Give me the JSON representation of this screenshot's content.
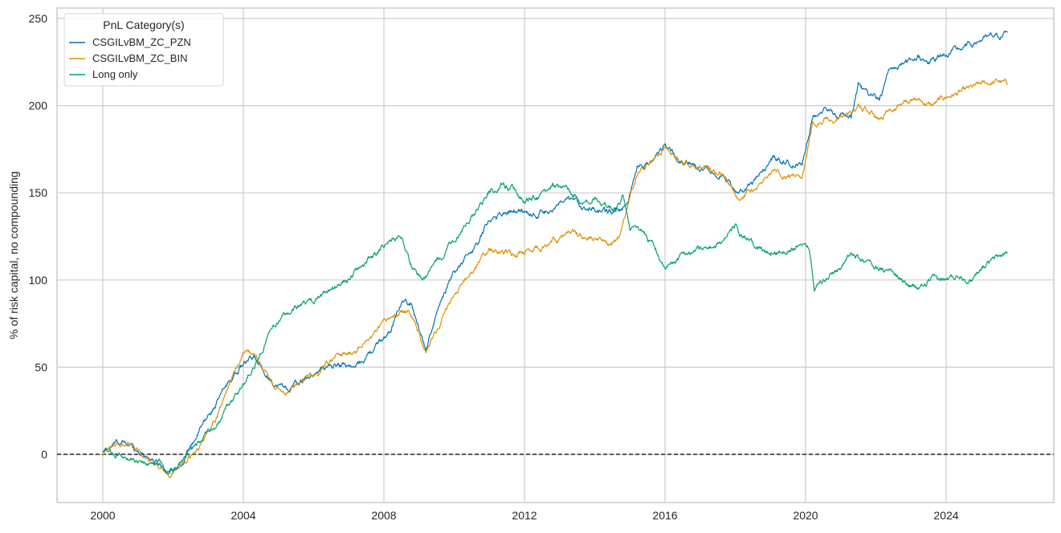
{
  "chart_data": {
    "type": "line",
    "title": "",
    "xlabel": "",
    "ylabel": "% of risk capital, no compounding",
    "xlim": [
      1998.7,
      2026.9
    ],
    "ylim": [
      -28,
      256
    ],
    "x_ticks": [
      "2000",
      "2004",
      "2008",
      "2012",
      "2016",
      "2020",
      "2024"
    ],
    "y_ticks": [
      "0",
      "50",
      "100",
      "150",
      "200",
      "250"
    ],
    "grid": true,
    "zero_line": {
      "y": 0,
      "style": "dashed",
      "color": "#000000"
    },
    "legend": {
      "title": "PnL Category(s)",
      "position": "upper left",
      "entries": [
        "CSGILvBM_ZC_PZN",
        "CSGILvBM_ZC_BIN",
        "Long only"
      ]
    },
    "series": [
      {
        "name": "CSGILvBM_ZC_PZN",
        "color": "#0173b2",
        "x": [
          2000.0,
          2000.4,
          2000.8,
          2001.2,
          2001.5,
          2001.9,
          2002.3,
          2002.7,
          2003.2,
          2003.6,
          2004.0,
          2004.3,
          2004.6,
          2004.9,
          2005.3,
          2005.7,
          2006.2,
          2006.7,
          2007.2,
          2007.7,
          2008.2,
          2008.5,
          2008.8,
          2009.2,
          2009.5,
          2009.9,
          2010.3,
          2010.7,
          2011.0,
          2011.4,
          2011.8,
          2012.3,
          2012.8,
          2013.3,
          2013.6,
          2014.0,
          2014.5,
          2014.9,
          2015.2,
          2015.6,
          2016.0,
          2016.4,
          2016.8,
          2017.2,
          2017.7,
          2018.1,
          2018.3,
          2018.7,
          2019.1,
          2019.5,
          2019.9,
          2020.2,
          2020.5,
          2020.9,
          2021.3,
          2021.5,
          2021.8,
          2022.1,
          2022.4,
          2022.8,
          2023.2,
          2023.6,
          2024.0,
          2024.5,
          2025.0,
          2025.5,
          2025.75
        ],
        "values": [
          1,
          7,
          5,
          0,
          -4,
          -10,
          -3,
          12,
          28,
          42,
          52,
          55,
          48,
          40,
          38,
          42,
          48,
          52,
          50,
          60,
          72,
          88,
          85,
          60,
          80,
          100,
          112,
          122,
          135,
          138,
          140,
          138,
          141,
          145,
          143,
          140,
          138,
          143,
          165,
          168,
          178,
          168,
          165,
          165,
          160,
          148,
          152,
          160,
          170,
          168,
          165,
          195,
          198,
          195,
          193,
          213,
          205,
          203,
          220,
          225,
          228,
          226,
          230,
          233,
          238,
          240,
          242
        ]
      },
      {
        "name": "CSGILvBM_ZC_BIN",
        "color": "#de8f05",
        "x": [
          2000.0,
          2000.4,
          2000.8,
          2001.2,
          2001.5,
          2001.9,
          2002.3,
          2002.7,
          2003.2,
          2003.6,
          2004.0,
          2004.3,
          2004.6,
          2004.9,
          2005.3,
          2005.7,
          2006.2,
          2006.7,
          2007.2,
          2007.7,
          2008.2,
          2008.5,
          2008.8,
          2009.2,
          2009.5,
          2009.9,
          2010.3,
          2010.7,
          2011.0,
          2011.4,
          2011.8,
          2012.3,
          2012.8,
          2013.3,
          2013.6,
          2014.0,
          2014.5,
          2014.7,
          2014.9,
          2015.2,
          2015.6,
          2016.0,
          2016.4,
          2016.8,
          2017.2,
          2017.7,
          2018.1,
          2018.3,
          2018.7,
          2019.1,
          2019.5,
          2019.9,
          2020.2,
          2020.5,
          2020.9,
          2021.3,
          2021.5,
          2021.8,
          2022.1,
          2022.4,
          2022.8,
          2023.2,
          2023.6,
          2024.0,
          2024.5,
          2025.0,
          2025.5,
          2025.75
        ],
        "values": [
          0,
          5,
          6,
          -2,
          -5,
          -13,
          -5,
          2,
          20,
          40,
          58,
          58,
          48,
          38,
          36,
          42,
          48,
          56,
          60,
          68,
          78,
          82,
          80,
          60,
          72,
          88,
          100,
          110,
          118,
          116,
          114,
          118,
          122,
          128,
          126,
          122,
          121,
          124,
          140,
          160,
          168,
          175,
          168,
          165,
          165,
          160,
          145,
          150,
          155,
          163,
          160,
          160,
          190,
          192,
          192,
          195,
          200,
          196,
          192,
          198,
          202,
          203,
          200,
          205,
          208,
          212,
          214,
          212
        ]
      },
      {
        "name": "Long only",
        "color": "#029e73",
        "x": [
          2000.0,
          2000.4,
          2000.8,
          2001.2,
          2001.6,
          2002.0,
          2002.4,
          2002.8,
          2003.2,
          2003.6,
          2004.0,
          2004.4,
          2004.8,
          2005.2,
          2005.6,
          2006.0,
          2006.5,
          2007.0,
          2007.5,
          2007.9,
          2008.2,
          2008.5,
          2008.8,
          2009.1,
          2009.5,
          2009.9,
          2010.3,
          2010.7,
          2011.0,
          2011.4,
          2011.7,
          2012.0,
          2012.4,
          2012.8,
          2013.2,
          2013.6,
          2014.0,
          2014.3,
          2014.6,
          2014.8,
          2015.0,
          2015.4,
          2015.8,
          2016.0,
          2016.5,
          2017.0,
          2017.5,
          2018.0,
          2018.2,
          2018.6,
          2019.0,
          2019.5,
          2019.9,
          2020.1,
          2020.25,
          2020.5,
          2021.0,
          2021.3,
          2021.7,
          2022.0,
          2022.4,
          2022.8,
          2023.2,
          2023.6,
          2024.0,
          2024.4,
          2024.7,
          2025.0,
          2025.4,
          2025.75
        ],
        "values": [
          2,
          0,
          -2,
          -5,
          -6,
          -10,
          0,
          8,
          15,
          28,
          40,
          55,
          72,
          80,
          85,
          88,
          95,
          100,
          110,
          118,
          122,
          125,
          108,
          100,
          110,
          120,
          132,
          140,
          150,
          155,
          152,
          145,
          148,
          155,
          152,
          145,
          148,
          145,
          140,
          148,
          128,
          128,
          115,
          105,
          115,
          118,
          120,
          130,
          125,
          118,
          115,
          118,
          122,
          120,
          95,
          100,
          108,
          115,
          110,
          108,
          105,
          98,
          95,
          100,
          100,
          103,
          100,
          108,
          112,
          116
        ]
      }
    ]
  }
}
